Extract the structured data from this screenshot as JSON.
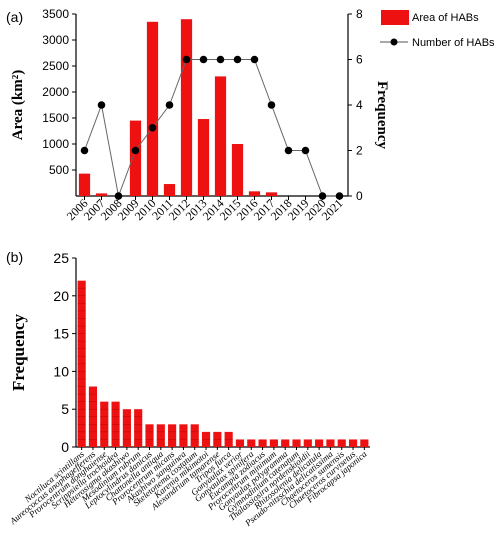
{
  "figure": {
    "label_a": "(a)",
    "label_b": "(b)"
  },
  "chart_data": [
    {
      "type": "bar+line",
      "ylabel_left": "Area (km²)",
      "ylabel_right": "Frequency",
      "xlabel": "",
      "categories": [
        "2006",
        "2007",
        "2008",
        "2009",
        "2010",
        "2011",
        "2012",
        "2013",
        "2014",
        "2015",
        "2016",
        "2017",
        "2018",
        "2019",
        "2020",
        "2021"
      ],
      "series": [
        {
          "name": "Area of HABs",
          "type": "bar",
          "axis": "left",
          "color": "#ee1111",
          "values": [
            430,
            50,
            0,
            1450,
            3350,
            230,
            3400,
            1480,
            2300,
            1000,
            90,
            70,
            0,
            0,
            0,
            0
          ]
        },
        {
          "name": "Number of HABs",
          "type": "line",
          "axis": "right",
          "color": "#000000",
          "values": [
            2,
            4,
            0,
            2,
            3,
            4,
            6,
            6,
            6,
            6,
            6,
            4,
            2,
            2,
            0,
            0
          ]
        }
      ],
      "ylim_left": [
        0,
        3500
      ],
      "yticks_left": [
        500,
        1000,
        1500,
        2000,
        2500,
        3000,
        3500
      ],
      "ylim_right": [
        0,
        8
      ],
      "yticks_right": [
        0,
        2,
        4,
        6,
        8
      ],
      "legend_position": "top-right"
    },
    {
      "type": "bar",
      "ylabel": "Frequency",
      "xlabel": "",
      "ylim": [
        0,
        25
      ],
      "yticks": [
        0,
        5,
        10,
        15,
        20,
        25
      ],
      "color": "#ee1111",
      "categories": [
        "Noctiluca scintillans",
        "Aureococcus anophagefferens",
        "Prorocentrum donghaiense",
        "Scrippsiella trochoidea",
        "Heterosigma akashiwo",
        "Mesodinium rubrum",
        "Leptocylindrus danicus",
        "Chattonella antiqua",
        "Prorocentrum micans",
        "Akashiwo sanguinea",
        "Skeletonema costatum",
        "Karenia mikimotoi",
        "Alexandrium tamarense",
        "Tripos furca",
        "Gonyaulax verior",
        "Gonyaulax spinifera",
        "Eucampia zodiacus",
        "Prorocentrum minimum",
        "Gonyaulax polygramma",
        "Gymnodinium catenatum",
        "Thalassiosira nordenskioldii",
        "Rhizosolenia delicatula",
        "Pseudo-nitzschia delicatissima",
        "Chaetoceros sumensis",
        "Chaetoceros curvisetus",
        "Fibrocapsa japonica"
      ],
      "values": [
        22,
        8,
        6,
        6,
        5,
        5,
        3,
        3,
        3,
        3,
        3,
        2,
        2,
        2,
        1,
        1,
        1,
        1,
        1,
        1,
        1,
        1,
        1,
        1,
        1,
        1
      ]
    }
  ]
}
